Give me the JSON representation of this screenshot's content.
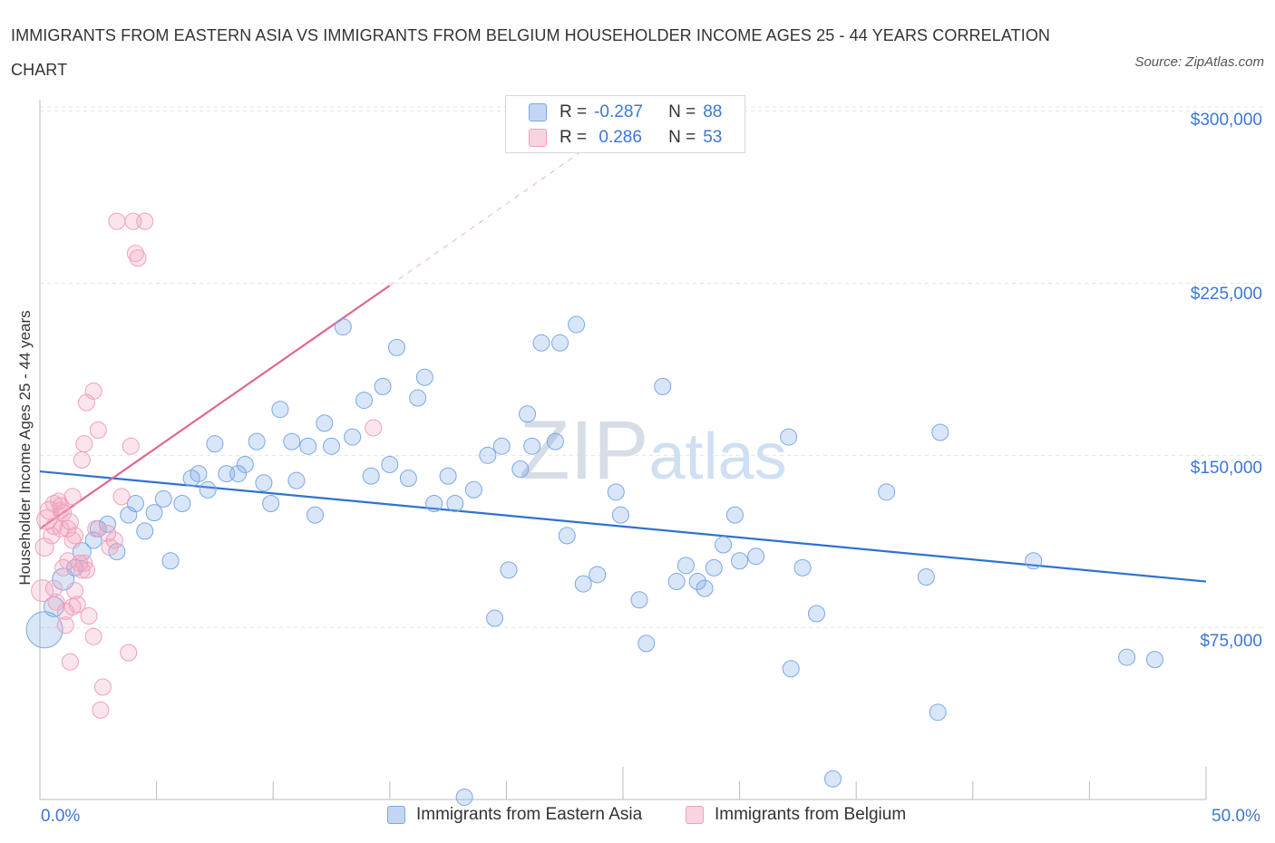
{
  "title": "IMMIGRANTS FROM EASTERN ASIA VS IMMIGRANTS FROM BELGIUM HOUSEHOLDER INCOME AGES 25 - 44 YEARS CORRELATION CHART",
  "source": "Source: ZipAtlas.com",
  "watermark": "ZIPatlas",
  "legend": {
    "rows": [
      {
        "r_label": "R =",
        "r_value": "-0.287",
        "n_label": "N =",
        "n_value": "88"
      },
      {
        "r_label": "R =",
        "r_value": " 0.286",
        "n_label": "N =",
        "n_value": "53"
      }
    ]
  },
  "chart_data": {
    "type": "scatter",
    "title": "IMMIGRANTS FROM EASTERN ASIA VS IMMIGRANTS FROM BELGIUM HOUSEHOLDER INCOME AGES 25 - 44 YEARS CORRELATION CHART",
    "xlabel": "",
    "ylabel": "Householder Income Ages 25 - 44 years",
    "x_tick_labels": [
      "0.0%",
      "50.0%"
    ],
    "y_tick_labels": [
      "$75,000",
      "$150,000",
      "$225,000",
      "$300,000"
    ],
    "y_ticks": [
      75000,
      150000,
      225000,
      300000
    ],
    "xlim": [
      0,
      50
    ],
    "ylim": [
      0,
      305000
    ],
    "grid": true,
    "legend_position": "bottom",
    "series": [
      {
        "name": "Immigrants from Eastern Asia",
        "color": "#7aa8e8",
        "fill": "rgba(120,165,230,0.28)",
        "trend_color": "#2f72d0",
        "trend": {
          "x0": 0,
          "y0": 143000,
          "x1": 50,
          "y1": 95000
        },
        "points": [
          [
            0.2,
            74000,
            20
          ],
          [
            1.0,
            96000,
            12
          ],
          [
            0.6,
            84000,
            11
          ],
          [
            1.8,
            108000,
            10
          ],
          [
            2.3,
            113000,
            9
          ],
          [
            2.5,
            118000,
            9
          ],
          [
            2.9,
            120000,
            9
          ],
          [
            3.3,
            108000,
            9
          ],
          [
            1.5,
            101000,
            9
          ],
          [
            3.8,
            124000,
            9
          ],
          [
            4.1,
            129000,
            9
          ],
          [
            4.5,
            117000,
            9
          ],
          [
            4.9,
            125000,
            9
          ],
          [
            5.3,
            131000,
            9
          ],
          [
            5.6,
            104000,
            9
          ],
          [
            6.1,
            129000,
            9
          ],
          [
            6.5,
            140000,
            9
          ],
          [
            6.8,
            142000,
            9
          ],
          [
            7.2,
            135000,
            9
          ],
          [
            7.5,
            155000,
            9
          ],
          [
            8.0,
            142000,
            9
          ],
          [
            8.5,
            142000,
            9
          ],
          [
            8.8,
            146000,
            9
          ],
          [
            9.3,
            156000,
            9
          ],
          [
            9.6,
            138000,
            9
          ],
          [
            9.9,
            129000,
            9
          ],
          [
            10.3,
            170000,
            9
          ],
          [
            10.8,
            156000,
            9
          ],
          [
            11.0,
            139000,
            9
          ],
          [
            11.5,
            154000,
            9
          ],
          [
            11.8,
            124000,
            9
          ],
          [
            12.2,
            164000,
            9
          ],
          [
            12.5,
            154000,
            9
          ],
          [
            13.0,
            206000,
            9
          ],
          [
            13.4,
            158000,
            9
          ],
          [
            13.9,
            174000,
            9
          ],
          [
            14.2,
            141000,
            9
          ],
          [
            14.7,
            180000,
            9
          ],
          [
            15.0,
            146000,
            9
          ],
          [
            15.3,
            197000,
            9
          ],
          [
            15.8,
            140000,
            9
          ],
          [
            16.2,
            175000,
            9
          ],
          [
            16.5,
            184000,
            9
          ],
          [
            16.9,
            129000,
            9
          ],
          [
            17.5,
            141000,
            9
          ],
          [
            17.8,
            129000,
            9
          ],
          [
            18.6,
            135000,
            9
          ],
          [
            19.2,
            150000,
            9
          ],
          [
            19.5,
            79000,
            9
          ],
          [
            19.8,
            154000,
            9
          ],
          [
            20.1,
            100000,
            9
          ],
          [
            20.6,
            144000,
            9
          ],
          [
            20.9,
            168000,
            9
          ],
          [
            21.1,
            154000,
            9
          ],
          [
            21.5,
            199000,
            9
          ],
          [
            22.1,
            156000,
            9
          ],
          [
            22.3,
            199000,
            9
          ],
          [
            22.6,
            115000,
            9
          ],
          [
            23.0,
            207000,
            9
          ],
          [
            23.3,
            94000,
            9
          ],
          [
            23.9,
            98000,
            9
          ],
          [
            24.7,
            134000,
            9
          ],
          [
            24.9,
            124000,
            9
          ],
          [
            25.7,
            87000,
            9
          ],
          [
            26.0,
            68000,
            9
          ],
          [
            26.7,
            180000,
            9
          ],
          [
            27.3,
            95000,
            9
          ],
          [
            27.7,
            102000,
            9
          ],
          [
            28.2,
            95000,
            9
          ],
          [
            28.5,
            92000,
            9
          ],
          [
            28.9,
            101000,
            9
          ],
          [
            29.3,
            111000,
            9
          ],
          [
            29.8,
            124000,
            9
          ],
          [
            30.0,
            104000,
            9
          ],
          [
            30.7,
            106000,
            9
          ],
          [
            32.1,
            158000,
            9
          ],
          [
            32.7,
            101000,
            9
          ],
          [
            33.3,
            81000,
            9
          ],
          [
            34.0,
            9000,
            9
          ],
          [
            36.3,
            134000,
            9
          ],
          [
            38.0,
            97000,
            9
          ],
          [
            38.6,
            160000,
            9
          ],
          [
            38.5,
            38000,
            9
          ],
          [
            42.6,
            104000,
            9
          ],
          [
            46.6,
            62000,
            9
          ],
          [
            47.8,
            61000,
            9
          ],
          [
            18.2,
            1000,
            9
          ],
          [
            32.2,
            57000,
            9
          ]
        ]
      },
      {
        "name": "Immigrants from Belgium",
        "color": "#f0a0ba",
        "fill": "rgba(240,160,185,0.28)",
        "trend_color": "#e0668e",
        "trend": {
          "x0": 0,
          "y0": 118000,
          "x1": 15,
          "y1": 224000
        },
        "trend_dashed": {
          "x0": 15,
          "y0": 224000,
          "x1": 24,
          "y1": 288000
        },
        "points": [
          [
            0.1,
            91000,
            12
          ],
          [
            0.2,
            110000,
            10
          ],
          [
            0.3,
            122000,
            11
          ],
          [
            0.4,
            126000,
            10
          ],
          [
            0.5,
            115000,
            9
          ],
          [
            0.6,
            129000,
            9
          ],
          [
            0.6,
            119000,
            9
          ],
          [
            0.7,
            86000,
            9
          ],
          [
            0.8,
            130000,
            9
          ],
          [
            0.9,
            118000,
            9
          ],
          [
            1.0,
            125000,
            9
          ],
          [
            1.0,
            101000,
            9
          ],
          [
            1.1,
            76000,
            9
          ],
          [
            1.1,
            82000,
            9
          ],
          [
            1.2,
            104000,
            9
          ],
          [
            1.3,
            121000,
            9
          ],
          [
            1.4,
            113000,
            9
          ],
          [
            1.5,
            115000,
            9
          ],
          [
            1.6,
            85000,
            9
          ],
          [
            1.7,
            103000,
            9
          ],
          [
            1.8,
            100000,
            9
          ],
          [
            1.9,
            103000,
            9
          ],
          [
            2.0,
            100000,
            9
          ],
          [
            2.1,
            80000,
            9
          ],
          [
            2.3,
            71000,
            9
          ],
          [
            2.4,
            118000,
            9
          ],
          [
            2.5,
            161000,
            9
          ],
          [
            2.6,
            39000,
            9
          ],
          [
            2.7,
            49000,
            9
          ],
          [
            2.9,
            116000,
            9
          ],
          [
            3.0,
            110000,
            9
          ],
          [
            3.2,
            113000,
            9
          ],
          [
            3.3,
            252000,
            9
          ],
          [
            3.5,
            132000,
            9
          ],
          [
            3.9,
            154000,
            9
          ],
          [
            3.8,
            64000,
            9
          ],
          [
            4.0,
            252000,
            9
          ],
          [
            4.1,
            238000,
            9
          ],
          [
            4.2,
            236000,
            9
          ],
          [
            4.5,
            252000,
            9
          ],
          [
            1.3,
            60000,
            9
          ],
          [
            1.4,
            84000,
            9
          ],
          [
            1.5,
            91000,
            9
          ],
          [
            1.8,
            148000,
            9
          ],
          [
            2.3,
            178000,
            9
          ],
          [
            2.0,
            173000,
            9
          ],
          [
            1.9,
            155000,
            9
          ],
          [
            1.4,
            132000,
            9
          ],
          [
            1.2,
            118000,
            9
          ],
          [
            0.9,
            128000,
            9
          ],
          [
            14.3,
            162000,
            9
          ],
          [
            0.9,
            126000,
            9
          ],
          [
            0.6,
            92000,
            9
          ]
        ]
      }
    ]
  }
}
